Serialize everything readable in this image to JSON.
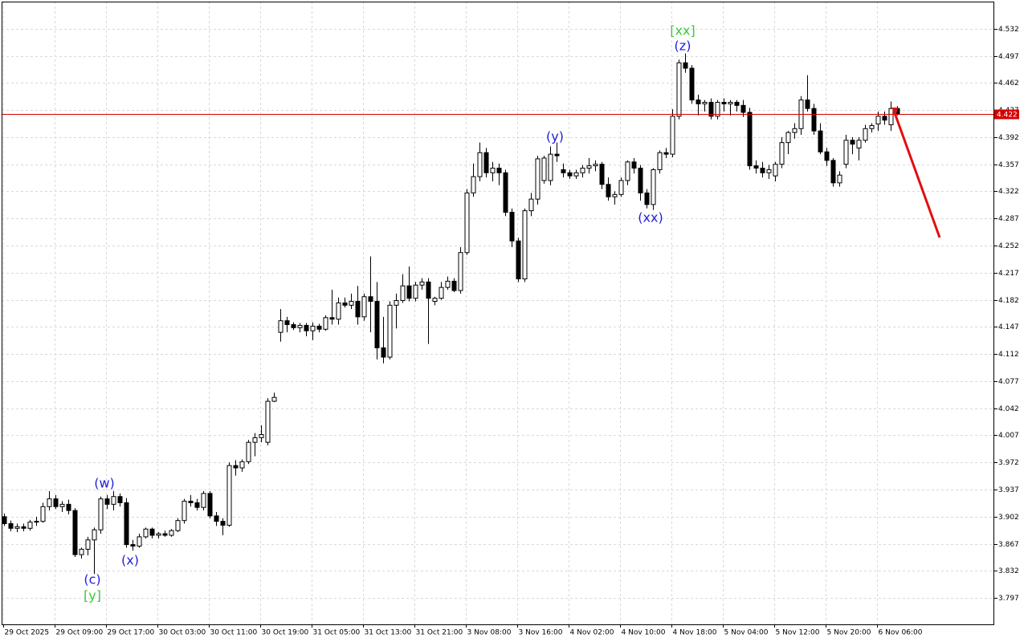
{
  "chart_data": {
    "type": "candlestick",
    "ylim": [
      3.763,
      4.567
    ],
    "yticks": [
      4.532,
      4.497,
      4.462,
      4.427,
      4.392,
      4.357,
      4.322,
      4.287,
      4.252,
      4.217,
      4.182,
      4.147,
      4.112,
      4.077,
      4.042,
      4.007,
      3.972,
      3.937,
      3.902,
      3.867,
      3.832,
      3.797
    ],
    "grid": true,
    "current_price": 4.422,
    "current_price_color": "#d40000",
    "up_color": "#ffffff",
    "down_color": "#000000",
    "categories": [
      "29 Oct 2025",
      null,
      null,
      null,
      null,
      null,
      null,
      null,
      "29 Oct 09:00",
      null,
      null,
      null,
      null,
      null,
      null,
      null,
      "29 Oct 17:00",
      null,
      null,
      null,
      null,
      null,
      null,
      null,
      "30 Oct 03:00",
      null,
      null,
      null,
      null,
      null,
      null,
      null,
      "30 Oct 11:00",
      null,
      null,
      null,
      null,
      null,
      null,
      null,
      "30 Oct 19:00",
      null,
      null,
      null,
      null,
      null,
      null,
      null,
      "31 Oct 05:00",
      null,
      null,
      null,
      null,
      null,
      null,
      null,
      "31 Oct 13:00",
      null,
      null,
      null,
      null,
      null,
      null,
      null,
      "31 Oct 21:00",
      null,
      null,
      null,
      null,
      null,
      null,
      null,
      "3 Nov 08:00",
      null,
      null,
      null,
      null,
      null,
      null,
      null,
      "3 Nov 16:00",
      null,
      null,
      null,
      null,
      null,
      null,
      null,
      "4 Nov 02:00",
      null,
      null,
      null,
      null,
      null,
      null,
      null,
      "4 Nov 10:00",
      null,
      null,
      null,
      null,
      null,
      null,
      null,
      "4 Nov 18:00",
      null,
      null,
      null,
      null,
      null,
      null,
      null,
      "5 Nov 04:00",
      null,
      null,
      null,
      null,
      null,
      null,
      null,
      "5 Nov 12:00",
      null,
      null,
      null,
      null,
      null,
      null,
      null,
      "5 Nov 20:00",
      null,
      null,
      null,
      null,
      null,
      null,
      null,
      "6 Nov 06:00",
      null,
      null,
      null
    ],
    "ohlc": [
      [
        3.902,
        3.906,
        3.89,
        3.893
      ],
      [
        3.893,
        3.897,
        3.883,
        3.887
      ],
      [
        3.887,
        3.893,
        3.882,
        3.889
      ],
      [
        3.889,
        3.893,
        3.883,
        3.887
      ],
      [
        3.887,
        3.898,
        3.884,
        3.895
      ],
      [
        3.895,
        3.902,
        3.89,
        3.896
      ],
      [
        3.896,
        3.92,
        3.894,
        3.915
      ],
      [
        3.915,
        3.935,
        3.91,
        3.925
      ],
      [
        3.925,
        3.93,
        3.912,
        3.915
      ],
      [
        3.915,
        3.922,
        3.908,
        3.918
      ],
      [
        3.918,
        3.924,
        3.905,
        3.91
      ],
      [
        3.91,
        3.913,
        3.85,
        3.853
      ],
      [
        3.853,
        3.862,
        3.848,
        3.86
      ],
      [
        3.86,
        3.876,
        3.852,
        3.872
      ],
      [
        3.872,
        3.888,
        3.828,
        3.885
      ],
      [
        3.885,
        3.928,
        3.88,
        3.925
      ],
      [
        3.925,
        3.93,
        3.912,
        3.918
      ],
      [
        3.918,
        3.935,
        3.91,
        3.928
      ],
      [
        3.928,
        3.932,
        3.915,
        3.92
      ],
      [
        3.92,
        3.926,
        3.862,
        3.866
      ],
      [
        3.866,
        3.872,
        3.858,
        3.864
      ],
      [
        3.864,
        3.88,
        3.862,
        3.876
      ],
      [
        3.876,
        3.888,
        3.874,
        3.886
      ],
      [
        3.886,
        3.888,
        3.874,
        3.878
      ],
      [
        3.878,
        3.882,
        3.874,
        3.88
      ],
      [
        3.88,
        3.884,
        3.876,
        3.878
      ],
      [
        3.878,
        3.886,
        3.876,
        3.884
      ],
      [
        3.884,
        3.9,
        3.882,
        3.897
      ],
      [
        3.897,
        3.925,
        3.893,
        3.922
      ],
      [
        3.922,
        3.93,
        3.915,
        3.92
      ],
      [
        3.92,
        3.925,
        3.91,
        3.914
      ],
      [
        3.914,
        3.935,
        3.91,
        3.932
      ],
      [
        3.932,
        3.935,
        3.9,
        3.903
      ],
      [
        3.903,
        3.908,
        3.89,
        3.896
      ],
      [
        3.896,
        3.9,
        3.878,
        3.891
      ],
      [
        3.891,
        3.972,
        3.889,
        3.968
      ],
      [
        3.968,
        3.975,
        3.955,
        3.965
      ],
      [
        3.965,
        3.976,
        3.96,
        3.973
      ],
      [
        3.973,
        4.001,
        3.97,
        3.998
      ],
      [
        3.998,
        4.01,
        3.98,
        4.004
      ],
      [
        4.004,
        4.02,
        3.998,
        4.008
      ],
      [
        3.998,
        4.055,
        3.994,
        4.051
      ],
      [
        4.051,
        4.062,
        4.05,
        4.056
      ],
      [
        4.14,
        4.17,
        4.128,
        4.155
      ],
      [
        4.155,
        4.16,
        4.14,
        4.15
      ],
      [
        4.15,
        4.153,
        4.143,
        4.146
      ],
      [
        4.146,
        4.152,
        4.14,
        4.149
      ],
      [
        4.149,
        4.152,
        4.135,
        4.142
      ],
      [
        4.142,
        4.153,
        4.13,
        4.148
      ],
      [
        4.148,
        4.151,
        4.14,
        4.144
      ],
      [
        4.144,
        4.162,
        4.142,
        4.159
      ],
      [
        4.159,
        4.195,
        4.15,
        4.157
      ],
      [
        4.157,
        4.185,
        4.15,
        4.178
      ],
      [
        4.178,
        4.185,
        4.172,
        4.175
      ],
      [
        4.175,
        4.19,
        4.17,
        4.18
      ],
      [
        4.18,
        4.2,
        4.15,
        4.16
      ],
      [
        4.16,
        4.19,
        4.155,
        4.186
      ],
      [
        4.186,
        4.238,
        4.14,
        4.18
      ],
      [
        4.18,
        4.205,
        4.105,
        4.12
      ],
      [
        4.12,
        4.16,
        4.1,
        4.108
      ],
      [
        4.108,
        4.18,
        4.105,
        4.175
      ],
      [
        4.175,
        4.19,
        4.145,
        4.181
      ],
      [
        4.181,
        4.215,
        4.178,
        4.2
      ],
      [
        4.2,
        4.225,
        4.18,
        4.184
      ],
      [
        4.184,
        4.205,
        4.18,
        4.201
      ],
      [
        4.201,
        4.21,
        4.195,
        4.205
      ],
      [
        4.205,
        4.21,
        4.125,
        4.184
      ],
      [
        4.18,
        4.186,
        4.175,
        4.184
      ],
      [
        4.184,
        4.205,
        4.182,
        4.198
      ],
      [
        4.198,
        4.212,
        4.195,
        4.206
      ],
      [
        4.206,
        4.21,
        4.192,
        4.194
      ],
      [
        4.194,
        4.25,
        4.19,
        4.243
      ],
      [
        4.243,
        4.325,
        4.24,
        4.32
      ],
      [
        4.32,
        4.358,
        4.315,
        4.341
      ],
      [
        4.341,
        4.385,
        4.335,
        4.372
      ],
      [
        4.372,
        4.378,
        4.34,
        4.346
      ],
      [
        4.346,
        4.36,
        4.335,
        4.352
      ],
      [
        4.352,
        4.358,
        4.33,
        4.346
      ],
      [
        4.346,
        4.35,
        4.29,
        4.295
      ],
      [
        4.295,
        4.3,
        4.25,
        4.258
      ],
      [
        4.258,
        4.262,
        4.205,
        4.209
      ],
      [
        4.209,
        4.3,
        4.205,
        4.297
      ],
      [
        4.297,
        4.32,
        4.29,
        4.312
      ],
      [
        4.312,
        4.368,
        4.305,
        4.364
      ],
      [
        4.336,
        4.368,
        4.332,
        4.365
      ],
      [
        4.336,
        4.38,
        4.33,
        4.37
      ],
      [
        4.37,
        4.385,
        4.36,
        4.368
      ],
      [
        4.35,
        4.358,
        4.34,
        4.346
      ],
      [
        4.346,
        4.35,
        4.338,
        4.342
      ],
      [
        4.342,
        4.35,
        4.338,
        4.346
      ],
      [
        4.346,
        4.356,
        4.34,
        4.352
      ],
      [
        4.352,
        4.365,
        4.345,
        4.355
      ],
      [
        4.355,
        4.362,
        4.348,
        4.357
      ],
      [
        4.357,
        4.36,
        4.325,
        4.331
      ],
      [
        4.331,
        4.34,
        4.31,
        4.315
      ],
      [
        4.315,
        4.322,
        4.305,
        4.318
      ],
      [
        4.318,
        4.34,
        4.315,
        4.336
      ],
      [
        4.336,
        4.362,
        4.33,
        4.36
      ],
      [
        4.36,
        4.365,
        4.345,
        4.352
      ],
      [
        4.352,
        4.356,
        4.31,
        4.32
      ],
      [
        4.32,
        4.325,
        4.3,
        4.305
      ],
      [
        4.305,
        4.352,
        4.298,
        4.35
      ],
      [
        4.35,
        4.375,
        4.345,
        4.372
      ],
      [
        4.372,
        4.378,
        4.365,
        4.37
      ],
      [
        4.37,
        4.428,
        4.366,
        4.419
      ],
      [
        4.419,
        4.492,
        4.415,
        4.488
      ],
      [
        4.488,
        4.5,
        4.475,
        4.481
      ],
      [
        4.481,
        4.485,
        4.435,
        4.44
      ],
      [
        4.44,
        4.447,
        4.42,
        4.435
      ],
      [
        4.435,
        4.44,
        4.425,
        4.437
      ],
      [
        4.437,
        4.442,
        4.415,
        4.419
      ],
      [
        4.419,
        4.44,
        4.415,
        4.437
      ],
      [
        4.437,
        4.442,
        4.425,
        4.435
      ],
      [
        4.435,
        4.44,
        4.42,
        4.437
      ],
      [
        4.437,
        4.44,
        4.425,
        4.433
      ],
      [
        4.433,
        4.44,
        4.418,
        4.424
      ],
      [
        4.424,
        4.43,
        4.35,
        4.355
      ],
      [
        4.355,
        4.362,
        4.345,
        4.352
      ],
      [
        4.352,
        4.36,
        4.34,
        4.346
      ],
      [
        4.346,
        4.356,
        4.338,
        4.35
      ],
      [
        4.342,
        4.36,
        4.335,
        4.357
      ],
      [
        4.357,
        4.392,
        4.352,
        4.385
      ],
      [
        4.385,
        4.4,
        4.37,
        4.398
      ],
      [
        4.398,
        4.41,
        4.39,
        4.403
      ],
      [
        4.403,
        4.445,
        4.395,
        4.44
      ],
      [
        4.44,
        4.472,
        4.425,
        4.429
      ],
      [
        4.429,
        4.435,
        4.395,
        4.4
      ],
      [
        4.4,
        4.41,
        4.37,
        4.373
      ],
      [
        4.373,
        4.378,
        4.355,
        4.362
      ],
      [
        4.362,
        4.365,
        4.328,
        4.333
      ],
      [
        4.333,
        4.348,
        4.328,
        4.343
      ],
      [
        4.357,
        4.395,
        4.352,
        4.388
      ],
      [
        4.388,
        4.392,
        4.37,
        4.383
      ],
      [
        4.378,
        4.392,
        4.362,
        4.388
      ],
      [
        4.388,
        4.408,
        4.385,
        4.403
      ],
      [
        4.403,
        4.41,
        4.398,
        4.407
      ],
      [
        4.409,
        4.425,
        4.4,
        4.419
      ],
      [
        4.419,
        4.425,
        4.408,
        4.414
      ],
      [
        4.408,
        4.438,
        4.4,
        4.429
      ],
      [
        4.429,
        4.432,
        4.42,
        4.422
      ]
    ],
    "annotations": [
      {
        "text": "(w)",
        "color": "#1f1fd8"
      },
      {
        "text": "(x)",
        "color": "#1f1fd8"
      },
      {
        "text": "(c)",
        "color": "#1f1fd8"
      },
      {
        "text": "[y]",
        "color": "#3cc83c"
      },
      {
        "text": "(y)",
        "color": "#1f1fd8"
      },
      {
        "text": "(xx)",
        "color": "#1f1fd8"
      },
      {
        "text": "(z)",
        "color": "#1f1fd8"
      },
      {
        "text": "[xx]",
        "color": "#3cc83c"
      }
    ]
  }
}
